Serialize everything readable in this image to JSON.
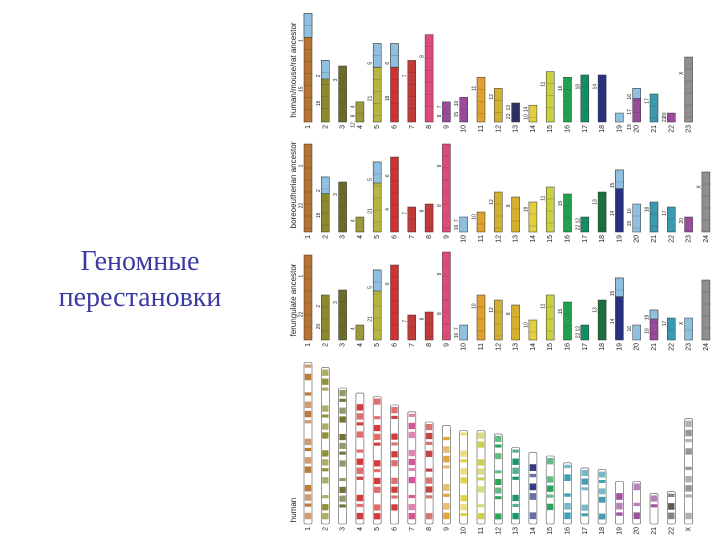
{
  "title": {
    "line1": "Геномные",
    "line2": "перестановки"
  },
  "colors": {
    "title": "#3a3aa0",
    "c1": "#b87333",
    "c2": "#8a8a2a",
    "c3": "#6b6b2a",
    "c4": "#9a9a3a",
    "c5": "#b5b540",
    "c6": "#d43030",
    "c7": "#c03a3a",
    "c8": "#d05090",
    "c9": "#e04a78",
    "c10": "#9a4a9a",
    "c11": "#e0a030",
    "c12": "#d4b030",
    "c13": "#303060",
    "c14": "#e0d040",
    "c15": "#c8d040",
    "c16": "#20a050",
    "c17": "#109060",
    "c18": "#187040",
    "c19": "#283080",
    "c20": "#8fc0e0",
    "c21": "#3a9ab0",
    "c22": "#505050",
    "cx": "#909090"
  },
  "rows": [
    {
      "label": "human/mouse/rat ancestor",
      "chromosomes": [
        {
          "id": "1",
          "length": 0.97,
          "color": "c1",
          "segments": [
            "1",
            "15"
          ],
          "secondary": "c20"
        },
        {
          "id": "2",
          "length": 0.55,
          "color": "c2",
          "segments": [
            "2",
            "18"
          ],
          "secondary": "c20"
        },
        {
          "id": "3",
          "length": 0.5,
          "color": "c3",
          "segments": [
            "3"
          ]
        },
        {
          "id": "4",
          "length": 0.18,
          "color": "c4",
          "segments": [
            "4",
            "8",
            "12"
          ]
        },
        {
          "id": "5",
          "length": 0.7,
          "color": "c5",
          "segments": [
            "5",
            "21"
          ],
          "secondary": "c20"
        },
        {
          "id": "6",
          "length": 0.7,
          "color": "c6",
          "segments": [
            "6",
            "18"
          ],
          "secondary": "c20"
        },
        {
          "id": "7",
          "length": 0.55,
          "color": "c7",
          "segments": [
            "7"
          ]
        },
        {
          "id": "8",
          "length": 0.78,
          "color": "c9",
          "segments": [
            "8"
          ]
        },
        {
          "id": "9",
          "length": 0.18,
          "color": "c10",
          "segments": [
            "7",
            "8"
          ]
        },
        {
          "id": "10",
          "length": 0.22,
          "color": "c10",
          "segments": [
            "10",
            "15"
          ]
        },
        {
          "id": "11",
          "length": 0.4,
          "color": "c11",
          "segments": [
            "11"
          ]
        },
        {
          "id": "12",
          "length": 0.3,
          "color": "c12",
          "segments": [
            "12"
          ]
        },
        {
          "id": "13",
          "length": 0.17,
          "color": "c13",
          "segments": [
            "13",
            "22"
          ]
        },
        {
          "id": "14",
          "length": 0.15,
          "color": "c14",
          "segments": [
            "14",
            "10"
          ]
        },
        {
          "id": "15",
          "length": 0.45,
          "color": "c15",
          "segments": [
            "11"
          ]
        },
        {
          "id": "16",
          "length": 0.4,
          "color": "c16",
          "segments": [
            "16"
          ]
        },
        {
          "id": "17",
          "length": 0.42,
          "color": "c17",
          "segments": [
            "18"
          ]
        },
        {
          "id": "18",
          "length": 0.42,
          "color": "c19",
          "segments": [
            "14"
          ]
        },
        {
          "id": "19",
          "length": 0.08,
          "color": "c20",
          "segments": []
        },
        {
          "id": "20",
          "length": 0.3,
          "color": "c10",
          "segments": [
            "16",
            "17",
            "19"
          ],
          "secondary": "c20"
        },
        {
          "id": "21",
          "length": 0.25,
          "color": "c21",
          "segments": [
            "17"
          ]
        },
        {
          "id": "22",
          "length": 0.08,
          "color": "c10",
          "segments": [
            "20",
            "22"
          ]
        },
        {
          "id": "23",
          "length": 0.58,
          "color": "cx",
          "segments": [
            "X"
          ]
        }
      ]
    },
    {
      "label": "boreoeutherian ancestor",
      "chromosomes": [
        {
          "id": "1",
          "length": 0.88,
          "color": "c1",
          "segments": [
            "1",
            "22"
          ]
        },
        {
          "id": "2",
          "length": 0.55,
          "color": "c2",
          "segments": [
            "2",
            "18"
          ],
          "secondary": "c20"
        },
        {
          "id": "3",
          "length": 0.5,
          "color": "c3",
          "segments": [
            "3"
          ]
        },
        {
          "id": "4",
          "length": 0.15,
          "color": "c4",
          "segments": [
            "4"
          ]
        },
        {
          "id": "5",
          "length": 0.7,
          "color": "c5",
          "segments": [
            "5",
            "21"
          ],
          "secondary": "c20"
        },
        {
          "id": "6",
          "length": 0.75,
          "color": "c6",
          "segments": [
            "6",
            "4"
          ]
        },
        {
          "id": "7",
          "length": 0.25,
          "color": "c7",
          "segments": [
            "7"
          ]
        },
        {
          "id": "8",
          "length": 0.28,
          "color": "c7",
          "segments": [
            "8"
          ]
        },
        {
          "id": "9",
          "length": 0.88,
          "color": "c9",
          "segments": [
            "9",
            "8"
          ]
        },
        {
          "id": "10",
          "length": 0.15,
          "color": "c20",
          "segments": [
            "7",
            "16"
          ]
        },
        {
          "id": "11",
          "length": 0.2,
          "color": "c11",
          "segments": [
            "10"
          ]
        },
        {
          "id": "12",
          "length": 0.4,
          "color": "c12",
          "segments": [
            "12"
          ]
        },
        {
          "id": "13",
          "length": 0.35,
          "color": "c12",
          "segments": [
            "8"
          ]
        },
        {
          "id": "14",
          "length": 0.3,
          "color": "c14",
          "segments": [
            "19"
          ]
        },
        {
          "id": "15",
          "length": 0.45,
          "color": "c15",
          "segments": [
            "11"
          ]
        },
        {
          "id": "16",
          "length": 0.38,
          "color": "c16",
          "segments": [
            "15"
          ]
        },
        {
          "id": "17",
          "length": 0.15,
          "color": "c17",
          "segments": [
            "12",
            "22"
          ]
        },
        {
          "id": "18",
          "length": 0.4,
          "color": "c18",
          "segments": [
            "13"
          ]
        },
        {
          "id": "19",
          "length": 0.62,
          "color": "c19",
          "segments": [
            "15",
            "14"
          ],
          "secondary": "c20"
        },
        {
          "id": "20",
          "length": 0.28,
          "color": "c20",
          "segments": [
            "16",
            "19"
          ]
        },
        {
          "id": "21",
          "length": 0.3,
          "color": "c21",
          "segments": [
            "18"
          ]
        },
        {
          "id": "22",
          "length": 0.25,
          "color": "c21",
          "segments": [
            "17"
          ]
        },
        {
          "id": "23",
          "length": 0.15,
          "color": "c10",
          "segments": [
            "20"
          ]
        },
        {
          "id": "24",
          "length": 0.6,
          "color": "cx",
          "segments": [
            "X"
          ]
        }
      ]
    },
    {
      "label": "ferungulate ancestor",
      "chromosomes": [
        {
          "id": "1",
          "length": 0.85,
          "color": "c1",
          "segments": [
            "1",
            "22"
          ]
        },
        {
          "id": "2",
          "length": 0.45,
          "color": "c2",
          "segments": [
            "2",
            "20"
          ]
        },
        {
          "id": "3",
          "length": 0.5,
          "color": "c3",
          "segments": [
            "3"
          ]
        },
        {
          "id": "4",
          "length": 0.15,
          "color": "c4",
          "segments": [
            "4"
          ]
        },
        {
          "id": "5",
          "length": 0.7,
          "color": "c5",
          "segments": [
            "5",
            "21"
          ],
          "secondary": "c20"
        },
        {
          "id": "6",
          "length": 0.75,
          "color": "c6",
          "segments": [
            "6"
          ]
        },
        {
          "id": "7",
          "length": 0.25,
          "color": "c7",
          "segments": [
            "7"
          ]
        },
        {
          "id": "8",
          "length": 0.28,
          "color": "c7",
          "segments": [
            "8"
          ]
        },
        {
          "id": "9",
          "length": 0.88,
          "color": "c9",
          "segments": [
            "9",
            "8"
          ]
        },
        {
          "id": "10",
          "length": 0.15,
          "color": "c20",
          "segments": [
            "7",
            "16"
          ]
        },
        {
          "id": "11",
          "length": 0.45,
          "color": "c11",
          "segments": [
            "10"
          ]
        },
        {
          "id": "12",
          "length": 0.4,
          "color": "c12",
          "segments": [
            "12"
          ]
        },
        {
          "id": "13",
          "length": 0.35,
          "color": "c12",
          "segments": [
            "8"
          ]
        },
        {
          "id": "14",
          "length": 0.2,
          "color": "c14",
          "segments": [
            "10"
          ]
        },
        {
          "id": "15",
          "length": 0.45,
          "color": "c15",
          "segments": [
            "11"
          ]
        },
        {
          "id": "16",
          "length": 0.38,
          "color": "c16",
          "segments": [
            "15"
          ]
        },
        {
          "id": "17",
          "length": 0.15,
          "color": "c17",
          "segments": [
            "12",
            "22"
          ]
        },
        {
          "id": "18",
          "length": 0.4,
          "color": "c18",
          "segments": [
            "13"
          ]
        },
        {
          "id": "19",
          "length": 0.62,
          "color": "c19",
          "segments": [
            "15",
            "14"
          ],
          "secondary": "c20"
        },
        {
          "id": "20",
          "length": 0.15,
          "color": "c20",
          "segments": [
            "16"
          ]
        },
        {
          "id": "21",
          "length": 0.3,
          "color": "c10",
          "segments": [
            "19",
            "18"
          ],
          "secondary": "c20"
        },
        {
          "id": "22",
          "length": 0.22,
          "color": "c21",
          "segments": [
            "17"
          ]
        },
        {
          "id": "23",
          "length": 0.22,
          "color": "c20",
          "segments": [
            "X"
          ]
        },
        {
          "id": "24",
          "length": 0.6,
          "color": "cx",
          "segments": []
        }
      ]
    }
  ],
  "human": {
    "label": "human",
    "chromosomes": [
      {
        "id": "1",
        "length": 0.95,
        "color": "c1"
      },
      {
        "id": "2",
        "length": 0.92,
        "color": "c2"
      },
      {
        "id": "3",
        "length": 0.8,
        "color": "c3"
      },
      {
        "id": "4",
        "length": 0.77,
        "color": "c6"
      },
      {
        "id": "5",
        "length": 0.75,
        "color": "c6"
      },
      {
        "id": "6",
        "length": 0.7,
        "color": "c6"
      },
      {
        "id": "7",
        "length": 0.66,
        "color": "c8"
      },
      {
        "id": "8",
        "length": 0.6,
        "color": "c7"
      },
      {
        "id": "9",
        "length": 0.58,
        "color": "c11"
      },
      {
        "id": "10",
        "length": 0.55,
        "color": "c14"
      },
      {
        "id": "11",
        "length": 0.55,
        "color": "c15"
      },
      {
        "id": "12",
        "length": 0.53,
        "color": "c16"
      },
      {
        "id": "13",
        "length": 0.45,
        "color": "c17"
      },
      {
        "id": "14",
        "length": 0.42,
        "color": "c19"
      },
      {
        "id": "15",
        "length": 0.4,
        "color": "c16"
      },
      {
        "id": "16",
        "length": 0.36,
        "color": "c21"
      },
      {
        "id": "17",
        "length": 0.33,
        "color": "c21"
      },
      {
        "id": "18",
        "length": 0.32,
        "color": "c21"
      },
      {
        "id": "19",
        "length": 0.25,
        "color": "c10"
      },
      {
        "id": "20",
        "length": 0.25,
        "color": "c10"
      },
      {
        "id": "21",
        "length": 0.18,
        "color": "c10"
      },
      {
        "id": "22",
        "length": 0.19,
        "color": "c22"
      },
      {
        "id": "X",
        "length": 0.62,
        "color": "cx"
      }
    ]
  }
}
